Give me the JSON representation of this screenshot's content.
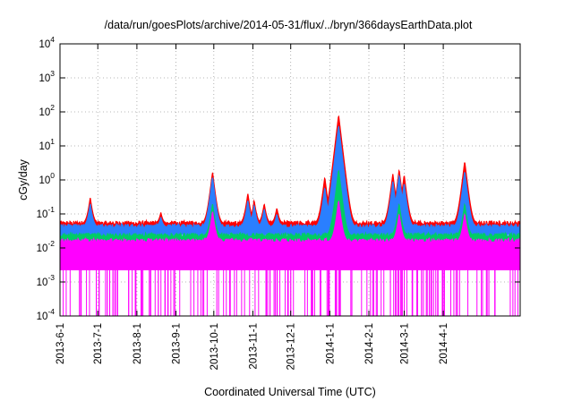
{
  "chart_data": {
    "type": "line",
    "title": "/data/run/goesPlots/archive/2014-05-31/flux/../bryn/366daysEarthData.plot",
    "xlabel": "Coordinated Universal Time (UTC)",
    "ylabel": "cGy/day",
    "yscale": "log",
    "ylim": [
      0.0001,
      10000
    ],
    "xlim": [
      "2013-06-01",
      "2014-06-01"
    ],
    "y_ticks": [
      {
        "base": "10",
        "exp": "-4",
        "value": 0.0001
      },
      {
        "base": "10",
        "exp": "-3",
        "value": 0.001
      },
      {
        "base": "10",
        "exp": "-2",
        "value": 0.01
      },
      {
        "base": "10",
        "exp": "-1",
        "value": 0.1
      },
      {
        "base": "10",
        "exp": "0",
        "value": 1
      },
      {
        "base": "10",
        "exp": "1",
        "value": 10
      },
      {
        "base": "10",
        "exp": "2",
        "value": 100
      },
      {
        "base": "10",
        "exp": "3",
        "value": 1000
      },
      {
        "base": "10",
        "exp": "4",
        "value": 10000
      }
    ],
    "x_ticks": [
      {
        "label": "2013-6-1",
        "date": "2013-06-01"
      },
      {
        "label": "2013-7-1",
        "date": "2013-07-01"
      },
      {
        "label": "2013-8-1",
        "date": "2013-08-01"
      },
      {
        "label": "2013-9-1",
        "date": "2013-09-01"
      },
      {
        "label": "2013-10-1",
        "date": "2013-10-01"
      },
      {
        "label": "2013-11-1",
        "date": "2013-11-01"
      },
      {
        "label": "2013-12-1",
        "date": "2013-12-01"
      },
      {
        "label": "2014-1-1",
        "date": "2014-01-01"
      },
      {
        "label": "2014-2-1",
        "date": "2014-02-01"
      },
      {
        "label": "2014-3-1",
        "date": "2014-03-01"
      },
      {
        "label": "2014-4-1",
        "date": "2014-04-01"
      }
    ],
    "grid": true,
    "series": [
      {
        "color": "#ff0000",
        "baseline": 0.05,
        "peaks": [
          {
            "date": "2013-06-25",
            "value": 0.3
          },
          {
            "date": "2013-08-20",
            "value": 0.11
          },
          {
            "date": "2013-09-30",
            "value": 1.7
          },
          {
            "date": "2013-10-28",
            "value": 0.4
          },
          {
            "date": "2013-11-02",
            "value": 0.25
          },
          {
            "date": "2013-11-10",
            "value": 0.2
          },
          {
            "date": "2013-11-20",
            "value": 0.15
          },
          {
            "date": "2013-12-28",
            "value": 1.2
          },
          {
            "date": "2014-01-08",
            "value": 80
          },
          {
            "date": "2014-02-20",
            "value": 1.5
          },
          {
            "date": "2014-02-25",
            "value": 2.0
          },
          {
            "date": "2014-03-01",
            "value": 1.4
          },
          {
            "date": "2014-04-18",
            "value": 3.5
          }
        ]
      },
      {
        "color": "#2a7fff",
        "baseline": 0.04,
        "peaks": [
          {
            "date": "2013-06-25",
            "value": 0.2
          },
          {
            "date": "2013-08-20",
            "value": 0.08
          },
          {
            "date": "2013-09-30",
            "value": 1.2
          },
          {
            "date": "2013-10-28",
            "value": 0.25
          },
          {
            "date": "2013-11-02",
            "value": 0.18
          },
          {
            "date": "2013-11-10",
            "value": 0.14
          },
          {
            "date": "2013-11-20",
            "value": 0.1
          },
          {
            "date": "2013-12-28",
            "value": 0.6
          },
          {
            "date": "2014-01-08",
            "value": 40
          },
          {
            "date": "2014-02-20",
            "value": 0.9
          },
          {
            "date": "2014-02-25",
            "value": 1.4
          },
          {
            "date": "2014-03-01",
            "value": 0.8
          },
          {
            "date": "2014-04-18",
            "value": 1.8
          }
        ]
      },
      {
        "color": "#00cc66",
        "baseline": 0.022,
        "peaks": [
          {
            "date": "2013-09-30",
            "value": 0.2
          },
          {
            "date": "2014-01-08",
            "value": 2.0
          },
          {
            "date": "2014-02-25",
            "value": 0.2
          },
          {
            "date": "2014-04-18",
            "value": 0.2
          }
        ]
      },
      {
        "color": "#ff00ff",
        "baseline": 0.015,
        "dropout_floor": 0.0022,
        "peaks": [
          {
            "date": "2013-09-30",
            "value": 0.12
          },
          {
            "date": "2014-01-08",
            "value": 0.25
          },
          {
            "date": "2014-02-25",
            "value": 0.1
          },
          {
            "date": "2014-04-18",
            "value": 0.1
          }
        ]
      }
    ]
  }
}
